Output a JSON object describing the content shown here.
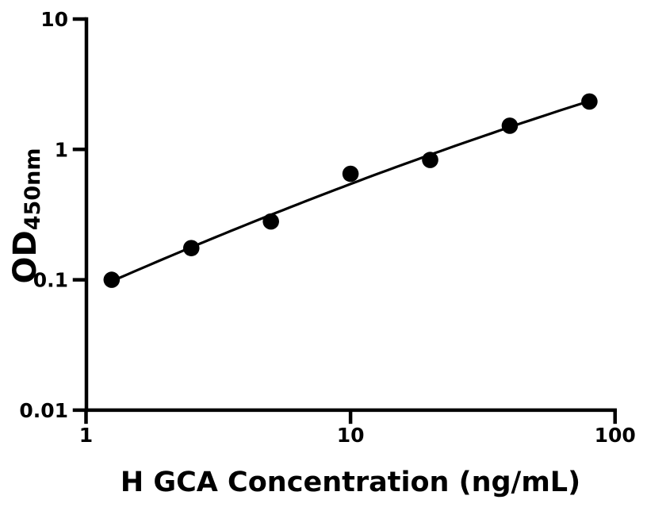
{
  "chart_data": {
    "type": "scatter",
    "title": "",
    "xlabel": "H GCA Concentration (ng/mL)",
    "ylabel": "OD",
    "ylabel_subscript": "450nm",
    "x": [
      1.25,
      2.5,
      5,
      10,
      20,
      40,
      80
    ],
    "y": [
      0.1,
      0.175,
      0.28,
      0.65,
      0.83,
      1.52,
      2.33
    ],
    "xscale": "log",
    "yscale": "log",
    "xlim": [
      1,
      100
    ],
    "ylim": [
      0.01,
      10
    ],
    "x_tick_values": [
      1,
      10,
      100
    ],
    "x_tick_labels": [
      "1",
      "10",
      "100"
    ],
    "y_tick_values": [
      10,
      1,
      0.1,
      0.01
    ],
    "y_tick_labels": [
      "10",
      "1",
      "0.1",
      "0.01"
    ],
    "grid": false,
    "legend": null,
    "marker": {
      "shape": "circle",
      "color": "#000000"
    },
    "fit_line": {
      "present": true,
      "type": "smooth-quadratic-loglog",
      "color": "#000000"
    },
    "axis_color": "#000000",
    "background_color": "#ffffff"
  }
}
